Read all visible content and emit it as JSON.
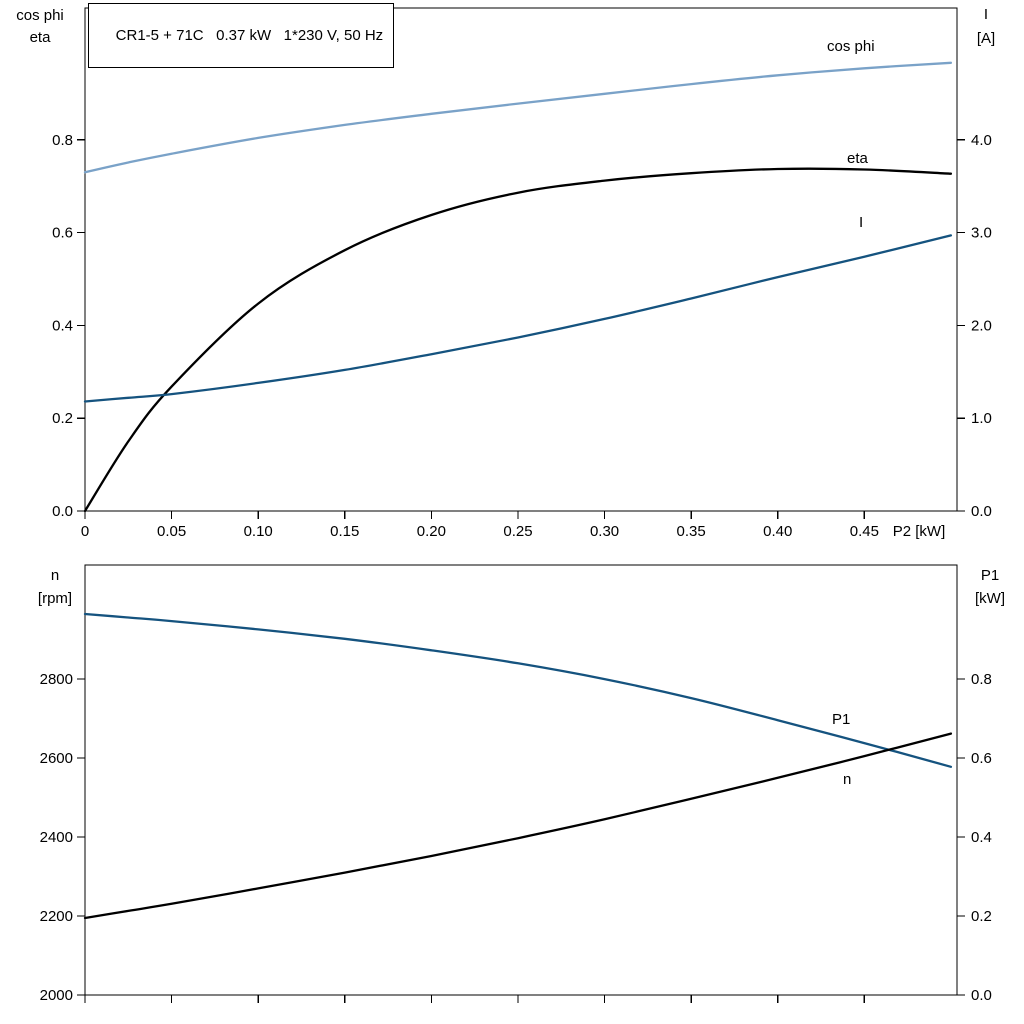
{
  "header": {
    "title": "CR1-5 + 71C   0.37 kW   1*230 V, 50 Hz"
  },
  "theme": {
    "black": "#000000",
    "dark_blue": "#15537f",
    "light_blue": "#7aa2c8",
    "background": "#ffffff"
  },
  "chart_data": [
    {
      "id": "motor-electrical",
      "type": "line",
      "title": "CR1-5 + 71C   0.37 kW   1*230 V, 50 Hz",
      "x_axis": {
        "label": "P2 [kW]",
        "range": [
          0,
          0.5035
        ],
        "ticks": [
          0,
          0.05,
          0.1,
          0.15,
          0.2,
          0.25,
          0.3,
          0.35,
          0.4,
          0.45
        ],
        "tick_labels": [
          "0",
          "0.05",
          "0.10",
          "0.15",
          "0.20",
          "0.25",
          "0.30",
          "0.35",
          "0.40",
          "0.45"
        ]
      },
      "left_axis": {
        "title_lines": [
          "cos phi",
          "eta"
        ],
        "range": [
          0,
          1.084
        ],
        "ticks": [
          0,
          0.2,
          0.4,
          0.6,
          0.8
        ],
        "tick_labels": [
          "0.0",
          "0.2",
          "0.4",
          "0.6",
          "0.8"
        ]
      },
      "right_axis": {
        "title_lines": [
          "I",
          "[A]"
        ],
        "range": [
          0,
          5.42
        ],
        "ticks": [
          0,
          1,
          2,
          3,
          4
        ],
        "tick_labels": [
          "0.0",
          "1.0",
          "2.0",
          "3.0",
          "4.0"
        ]
      },
      "x": [
        0,
        0.025,
        0.05,
        0.1,
        0.15,
        0.2,
        0.25,
        0.3,
        0.35,
        0.4,
        0.45,
        0.5
      ],
      "series": [
        {
          "name": "cos phi",
          "axis": "left",
          "color_key": "light_blue",
          "values": [
            0.73,
            0.751,
            0.77,
            0.804,
            0.832,
            0.856,
            0.878,
            0.899,
            0.92,
            0.939,
            0.954,
            0.966
          ],
          "label": {
            "text": "cos phi",
            "px": [
              827,
              51
            ]
          }
        },
        {
          "name": "eta",
          "axis": "left",
          "color_key": "black",
          "values": [
            0.0,
            0.15,
            0.268,
            0.447,
            0.562,
            0.638,
            0.686,
            0.712,
            0.728,
            0.737,
            0.736,
            0.727
          ],
          "label": {
            "text": "eta",
            "px": [
              847,
              163
            ]
          }
        },
        {
          "name": "I",
          "axis": "right",
          "color_key": "dark_blue",
          "values": [
            1.18,
            1.22,
            1.26,
            1.38,
            1.52,
            1.69,
            1.87,
            2.07,
            2.29,
            2.52,
            2.74,
            2.97
          ],
          "label": {
            "text": "I",
            "px": [
              859,
              227
            ]
          }
        }
      ]
    },
    {
      "id": "speed-power",
      "type": "line",
      "title": "",
      "x_axis": {
        "label": "",
        "range": [
          0,
          0.5035
        ],
        "ticks": [
          0,
          0.05,
          0.1,
          0.15,
          0.2,
          0.25,
          0.3,
          0.35,
          0.4,
          0.45
        ],
        "tick_labels": []
      },
      "left_axis": {
        "title_lines": [
          "n",
          "[rpm]"
        ],
        "range": [
          2000,
          3089
        ],
        "ticks": [
          2000,
          2200,
          2400,
          2600,
          2800
        ],
        "tick_labels": [
          "2000",
          "2200",
          "2400",
          "2600",
          "2800"
        ]
      },
      "right_axis": {
        "title_lines": [
          "P1",
          "[kW]"
        ],
        "range": [
          0,
          1.089
        ],
        "ticks": [
          0,
          0.2,
          0.4,
          0.6,
          0.8
        ],
        "tick_labels": [
          "0.0",
          "0.2",
          "0.4",
          "0.6",
          "0.8"
        ]
      },
      "x": [
        0,
        0.025,
        0.05,
        0.1,
        0.15,
        0.2,
        0.25,
        0.3,
        0.35,
        0.4,
        0.45,
        0.5
      ],
      "series": [
        {
          "name": "n",
          "axis": "left",
          "color_key": "dark_blue",
          "values": [
            2965,
            2956,
            2947,
            2926,
            2902,
            2873,
            2840,
            2800,
            2752,
            2696,
            2638,
            2578
          ],
          "label": {
            "text": "n",
            "px": [
              843,
              784
            ]
          }
        },
        {
          "name": "P1",
          "axis": "right",
          "color_key": "black",
          "values": [
            0.195,
            0.213,
            0.231,
            0.27,
            0.31,
            0.352,
            0.397,
            0.445,
            0.497,
            0.55,
            0.605,
            0.662
          ],
          "label": {
            "text": "P1",
            "px": [
              832,
              724
            ]
          }
        }
      ]
    }
  ]
}
